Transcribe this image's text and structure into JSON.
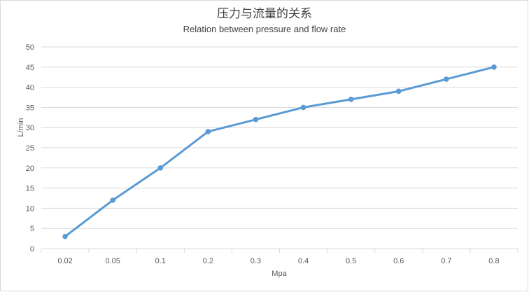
{
  "chart_data": {
    "type": "line",
    "title": "压力与流量的关系",
    "subtitle": "Relation between pressure and flow rate",
    "xlabel": "Mpa",
    "ylabel": "L/min",
    "categories": [
      "0.02",
      "0.05",
      "0.1",
      "0.2",
      "0.3",
      "0.4",
      "0.5",
      "0.6",
      "0.7",
      "0.8"
    ],
    "series": [
      {
        "values": [
          3,
          12,
          20,
          29,
          32,
          35,
          37,
          39,
          42,
          45
        ],
        "color": "#5b9bd5"
      }
    ],
    "ylim": [
      0,
      50
    ],
    "yticks": [
      0,
      5,
      10,
      15,
      20,
      25,
      30,
      35,
      40,
      45,
      50
    ],
    "grid": true,
    "legend": "none"
  }
}
